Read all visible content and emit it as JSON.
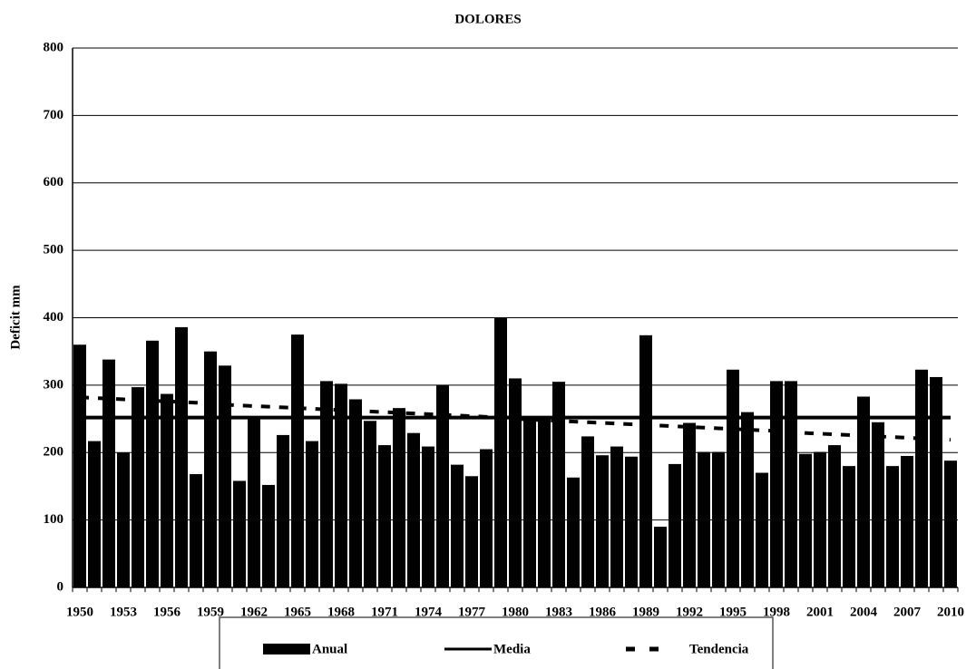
{
  "chart_data": {
    "type": "bar",
    "title": "DOLORES",
    "y_label": "Deficit mm",
    "categories": [
      "1950",
      null,
      null,
      "1953",
      null,
      null,
      "1956",
      null,
      null,
      "1959",
      null,
      null,
      "1962",
      null,
      null,
      "1965",
      null,
      null,
      "1968",
      null,
      null,
      "1971",
      null,
      null,
      "1974",
      null,
      null,
      "1977",
      null,
      null,
      "1980",
      null,
      null,
      "1983",
      null,
      null,
      "1986",
      null,
      null,
      "1989",
      null,
      null,
      "1992",
      null,
      null,
      "1995",
      null,
      null,
      "1998",
      null,
      null,
      "2001",
      null,
      null,
      "2004",
      null,
      null,
      "2007",
      null,
      null,
      "2010"
    ],
    "series": [
      {
        "name": "Anual",
        "type": "bar",
        "color": "#000000",
        "values": [
          360,
          217,
          338,
          200,
          297,
          366,
          287,
          386,
          168,
          350,
          329,
          158,
          252,
          152,
          226,
          375,
          217,
          306,
          302,
          279,
          247,
          211,
          266,
          229,
          209,
          300,
          182,
          165,
          205,
          400,
          310,
          254,
          254,
          305,
          163,
          224,
          196,
          209,
          194,
          374,
          90,
          183,
          244,
          201,
          201,
          323,
          260,
          170,
          306,
          306,
          198,
          201,
          211,
          180,
          283,
          245,
          180,
          195,
          323,
          312,
          188
        ]
      },
      {
        "name": "Media",
        "type": "line",
        "color": "#000000",
        "values": [
          252,
          252,
          252,
          252,
          252,
          252,
          252,
          252,
          252,
          252,
          252,
          252,
          252,
          252,
          252,
          252,
          252,
          252,
          252,
          252,
          252,
          252,
          252,
          252,
          252,
          252,
          252,
          252,
          252,
          252,
          252,
          252,
          252,
          252,
          252,
          252,
          252,
          252,
          252,
          252,
          252,
          252,
          252,
          252,
          252,
          252,
          252,
          252,
          252,
          252,
          252,
          252,
          252,
          252,
          252,
          252,
          252,
          252,
          252,
          252,
          252
        ]
      },
      {
        "name": "Tendencia",
        "type": "dashed",
        "color": "#000000",
        "values": [
          282,
          281,
          280,
          279,
          278,
          277,
          276,
          275,
          274,
          273,
          271,
          270,
          269,
          268,
          267,
          266,
          265,
          264,
          263,
          262,
          261,
          260,
          259,
          258,
          257,
          256,
          255,
          254,
          253,
          252,
          250,
          249,
          248,
          247,
          246,
          245,
          244,
          243,
          242,
          241,
          240,
          239,
          238,
          237,
          236,
          235,
          234,
          233,
          232,
          231,
          229,
          228,
          227,
          226,
          225,
          224,
          223,
          222,
          221,
          220,
          219
        ]
      }
    ],
    "ylim": [
      0,
      800
    ],
    "yticks": [
      0,
      100,
      200,
      300,
      400,
      500,
      600,
      700,
      800
    ],
    "grid": true
  }
}
